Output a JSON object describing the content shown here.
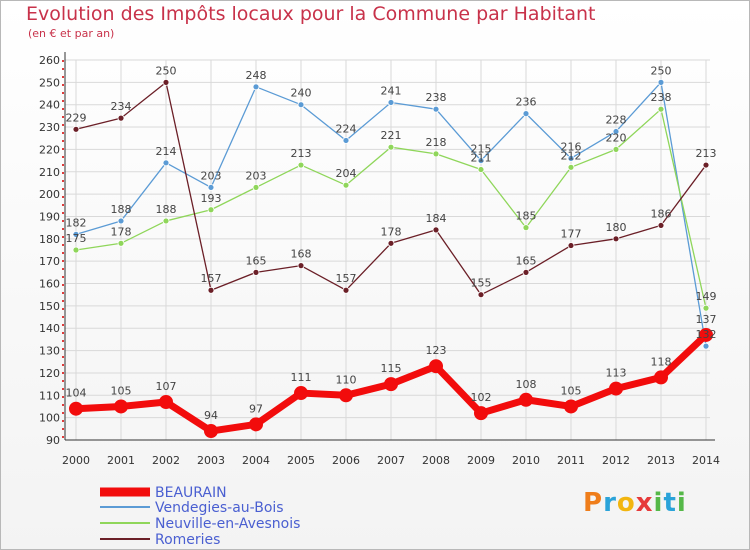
{
  "header": {
    "title": "Evolution des Impôts locaux pour la Commune par Habitant",
    "subtitle": "(en € et par an)"
  },
  "logo": {
    "letters": [
      "P",
      "r",
      "o",
      "x",
      "i",
      "t",
      "i"
    ],
    "colors": [
      "#ef7d1a",
      "#2aa3d9",
      "#f2b50f",
      "#e63a3a",
      "#55b848",
      "#2aa3d9",
      "#55b848"
    ]
  },
  "chart_data": {
    "type": "line",
    "title": "Evolution des Impôts locaux pour la Commune par Habitant",
    "subtitle": "(en € et par an)",
    "xlabel": "",
    "ylabel": "",
    "ylim": [
      90,
      260
    ],
    "grid": true,
    "legend_position": "bottom-left",
    "x": [
      "2000",
      "2001",
      "2002",
      "2003",
      "2004",
      "2005",
      "2006",
      "2007",
      "2008",
      "2009",
      "2010",
      "2011",
      "2012",
      "2013",
      "2014"
    ],
    "yticks": [
      90,
      100,
      110,
      120,
      130,
      140,
      150,
      160,
      170,
      180,
      190,
      200,
      210,
      220,
      230,
      240,
      250,
      260
    ],
    "series": [
      {
        "name": "Vendegies-au-Bois",
        "color": "#5b9bd5",
        "values": [
          182,
          188,
          214,
          203,
          248,
          240,
          224,
          241,
          238,
          215,
          236,
          216,
          228,
          250,
          132
        ]
      },
      {
        "name": "Neuville-en-Avesnois",
        "color": "#8fd65a",
        "values": [
          175,
          178,
          188,
          193,
          203,
          213,
          204,
          221,
          218,
          211,
          185,
          212,
          220,
          238,
          149
        ]
      },
      {
        "name": "Romeries",
        "color": "#6b1f27",
        "values": [
          229,
          234,
          250,
          157,
          165,
          168,
          157,
          178,
          184,
          155,
          165,
          177,
          180,
          186,
          213
        ]
      },
      {
        "name": "BEAURAIN",
        "color": "#f20c0c",
        "values": [
          104,
          105,
          107,
          94,
          97,
          111,
          110,
          115,
          123,
          102,
          108,
          105,
          113,
          118,
          137
        ]
      }
    ],
    "legend": [
      "BEAURAIN",
      "Vendegies-au-Bois",
      "Neuville-en-Avesnois",
      "Romeries"
    ]
  }
}
